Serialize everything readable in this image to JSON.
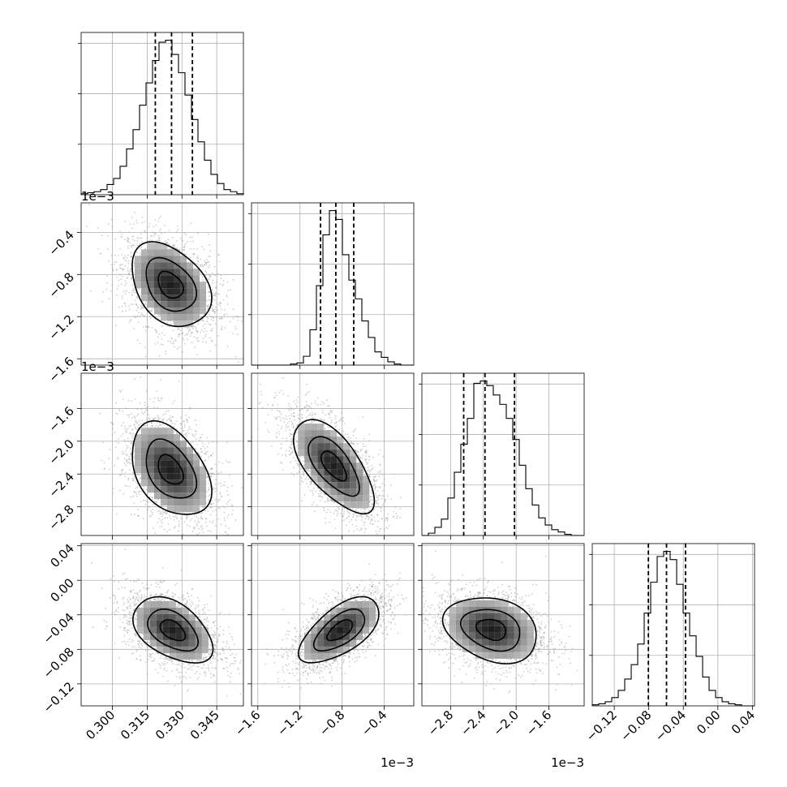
{
  "chart_data": {
    "type": "corner",
    "parameters": [
      {
        "ticks": [
          "0.300",
          "0.315",
          "0.330",
          "0.345"
        ],
        "tick_values": [
          0.3,
          0.315,
          0.33,
          0.345
        ],
        "range": [
          0.2865,
          0.3565
        ],
        "offset_text": "",
        "hist": {
          "edges": [
            0.2865,
            0.3565
          ],
          "counts": [
            1,
            2,
            3,
            5,
            10,
            16,
            28,
            45,
            64,
            88,
            110,
            132,
            150,
            152,
            138,
            120,
            98,
            74,
            52,
            34,
            20,
            11,
            5,
            3,
            1
          ]
        },
        "quantiles": [
          0.3185,
          0.3255,
          0.3345
        ]
      },
      {
        "ticks": [
          "−1.6",
          "−1.2",
          "−0.8",
          "−0.4"
        ],
        "tick_values": [
          -1.6,
          -1.2,
          -0.8,
          -0.4
        ],
        "range": [
          -1.66,
          -0.12
        ],
        "offset_text": "1e−3",
        "hist": {
          "edges": [
            -1.66,
            -0.12
          ],
          "counts": [
            0,
            0,
            0,
            0,
            0,
            0,
            1,
            2,
            8,
            32,
            72,
            118,
            140,
            132,
            100,
            77,
            60,
            40,
            25,
            12,
            7,
            3,
            1,
            0,
            0
          ]
        },
        "quantiles": [
          -1.005,
          -0.86,
          -0.69
        ]
      },
      {
        "ticks": [
          "−2.8",
          "−2.4",
          "−2.0",
          "−1.6"
        ],
        "tick_values": [
          -2.8,
          -2.4,
          -2.0,
          -1.6
        ],
        "range": [
          -3.15,
          -1.17
        ],
        "offset_text": "1e−3",
        "hist": {
          "edges": [
            -3.15,
            -1.17
          ],
          "counts": [
            0,
            2,
            7,
            14,
            32,
            54,
            78,
            100,
            130,
            132,
            128,
            120,
            112,
            100,
            82,
            60,
            40,
            26,
            15,
            9,
            5,
            3,
            1,
            0,
            0
          ]
        },
        "quantiles": [
          -2.64,
          -2.38,
          -2.02
        ]
      },
      {
        "ticks": [
          "−0.12",
          "−0.08",
          "−0.04",
          "0.00",
          "0.04"
        ],
        "tick_values": [
          -0.12,
          -0.08,
          -0.04,
          0.0,
          0.04
        ],
        "range": [
          -0.1455,
          0.0425
        ],
        "offset_text": "",
        "hist": {
          "edges": [
            -0.1455,
            0.0425
          ],
          "counts": [
            1,
            2,
            4,
            8,
            15,
            26,
            40,
            60,
            90,
            120,
            145,
            150,
            142,
            118,
            90,
            68,
            48,
            28,
            15,
            8,
            4,
            2,
            1,
            0,
            0
          ]
        },
        "quantiles": [
          -0.0805,
          -0.0595,
          -0.0375
        ]
      }
    ],
    "pairs": [
      {
        "row": 1,
        "col": 0,
        "mean": [
          0.325,
          -0.9
        ],
        "sd": [
          0.009,
          0.21
        ],
        "rho": -0.35
      },
      {
        "row": 2,
        "col": 0,
        "mean": [
          0.325,
          -2.35
        ],
        "sd": [
          0.009,
          0.3
        ],
        "rho": -0.4
      },
      {
        "row": 2,
        "col": 1,
        "mean": [
          -0.88,
          -2.3
        ],
        "sd": [
          0.2,
          0.3
        ],
        "rho": -0.65
      },
      {
        "row": 3,
        "col": 0,
        "mean": [
          0.326,
          -0.058
        ],
        "sd": [
          0.009,
          0.02
        ],
        "rho": -0.45
      },
      {
        "row": 3,
        "col": 1,
        "mean": [
          -0.82,
          -0.058
        ],
        "sd": [
          0.2,
          0.02
        ],
        "rho": 0.62
      },
      {
        "row": 3,
        "col": 2,
        "mean": [
          -2.3,
          -0.057
        ],
        "sd": [
          0.3,
          0.02
        ],
        "rho": -0.25
      }
    ]
  }
}
